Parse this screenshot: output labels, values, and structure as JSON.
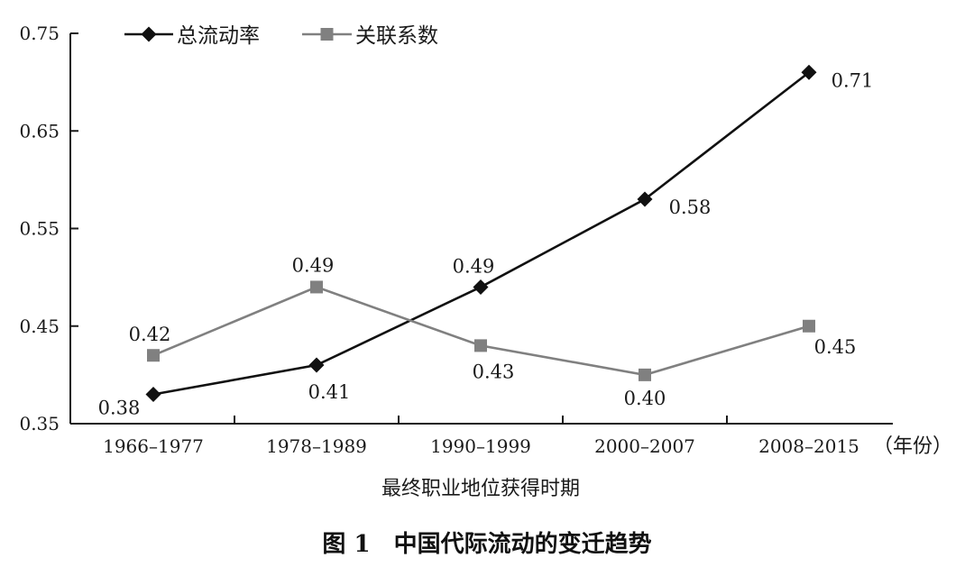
{
  "figure_caption": "图 1　中国代际流动的变迁趋势",
  "chart_data": {
    "type": "line",
    "categories": [
      "1966–1977",
      "1978–1989",
      "1990–1999",
      "2000–2007",
      "2008–2015"
    ],
    "x_unit": "（年份）",
    "xlabel": "最终职业地位获得时期",
    "ylabel": "",
    "ylim": [
      0.35,
      0.75
    ],
    "yticks": [
      "0.35",
      "0.45",
      "0.55",
      "0.65",
      "0.75"
    ],
    "grid": false,
    "legend_position": "top-left",
    "series": [
      {
        "name": "总流动率",
        "marker": "diamond",
        "color": "#111111",
        "values": [
          0.38,
          0.41,
          0.49,
          0.58,
          0.71
        ],
        "labels": [
          "0.38",
          "0.41",
          "0.49",
          "0.58",
          "0.71"
        ]
      },
      {
        "name": "关联系数",
        "marker": "square",
        "color": "#808080",
        "values": [
          0.42,
          0.49,
          0.43,
          0.4,
          0.45
        ],
        "labels": [
          "0.42",
          "0.49",
          "0.43",
          "0.40",
          "0.45"
        ]
      }
    ]
  }
}
